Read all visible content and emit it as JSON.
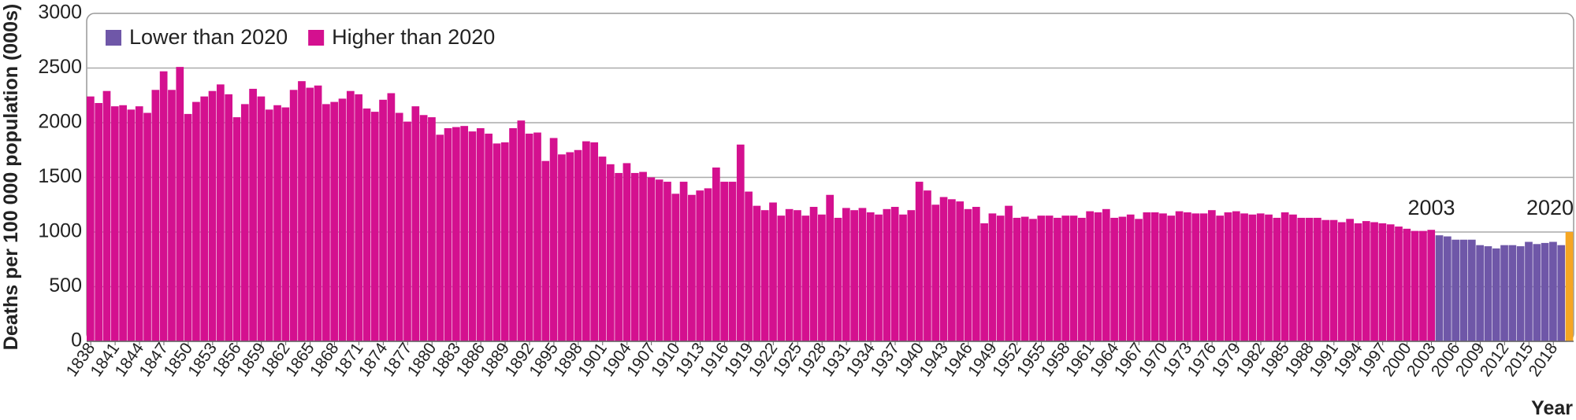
{
  "chart_data": {
    "type": "bar",
    "y_label": "Deaths per 100 000 population (000s)",
    "x_label": "Year",
    "ylim": [
      0,
      3000
    ],
    "yticks": [
      0,
      500,
      1000,
      1500,
      2000,
      2500,
      3000
    ],
    "xlim": [
      1837.5,
      2020.5
    ],
    "xticks": [
      1838,
      1841,
      1844,
      1847,
      1850,
      1853,
      1856,
      1859,
      1862,
      1865,
      1868,
      1871,
      1874,
      1877,
      1880,
      1883,
      1886,
      1889,
      1892,
      1895,
      1898,
      1901,
      1904,
      1907,
      1910,
      1913,
      1916,
      1919,
      1922,
      1925,
      1928,
      1931,
      1934,
      1937,
      1940,
      1943,
      1946,
      1949,
      1952,
      1955,
      1958,
      1961,
      1964,
      1967,
      1970,
      1973,
      1976,
      1979,
      1982,
      1985,
      1988,
      1991,
      1994,
      1997,
      2000,
      2003,
      2006,
      2009,
      2012,
      2015,
      2018
    ],
    "grid": true,
    "legend": "top-left",
    "series": [
      {
        "name": "Lower than 2020",
        "color": "#6f57a8",
        "x": [
          2004,
          2005,
          2006,
          2007,
          2008,
          2009,
          2010,
          2011,
          2012,
          2013,
          2014,
          2015,
          2016,
          2017,
          2018,
          2019
        ],
        "values": [
          970,
          960,
          930,
          930,
          930,
          880,
          870,
          850,
          880,
          880,
          870,
          910,
          890,
          900,
          910,
          880
        ]
      },
      {
        "name": "Higher than 2020",
        "color": "#d4108f",
        "x": [
          1838,
          1839,
          1840,
          1841,
          1842,
          1843,
          1844,
          1845,
          1846,
          1847,
          1848,
          1849,
          1850,
          1851,
          1852,
          1853,
          1854,
          1855,
          1856,
          1857,
          1858,
          1859,
          1860,
          1861,
          1862,
          1863,
          1864,
          1865,
          1866,
          1867,
          1868,
          1869,
          1870,
          1871,
          1872,
          1873,
          1874,
          1875,
          1876,
          1877,
          1878,
          1879,
          1880,
          1881,
          1882,
          1883,
          1884,
          1885,
          1886,
          1887,
          1888,
          1889,
          1890,
          1891,
          1892,
          1893,
          1894,
          1895,
          1896,
          1897,
          1898,
          1899,
          1900,
          1901,
          1902,
          1903,
          1904,
          1905,
          1906,
          1907,
          1908,
          1909,
          1910,
          1911,
          1912,
          1913,
          1914,
          1915,
          1916,
          1917,
          1918,
          1919,
          1920,
          1921,
          1922,
          1923,
          1924,
          1925,
          1926,
          1927,
          1928,
          1929,
          1930,
          1931,
          1932,
          1933,
          1934,
          1935,
          1936,
          1937,
          1938,
          1939,
          1940,
          1941,
          1942,
          1943,
          1944,
          1945,
          1946,
          1947,
          1948,
          1949,
          1950,
          1951,
          1952,
          1953,
          1954,
          1955,
          1956,
          1957,
          1958,
          1959,
          1960,
          1961,
          1962,
          1963,
          1964,
          1965,
          1966,
          1967,
          1968,
          1969,
          1970,
          1971,
          1972,
          1973,
          1974,
          1975,
          1976,
          1977,
          1978,
          1979,
          1980,
          1981,
          1982,
          1983,
          1984,
          1985,
          1986,
          1987,
          1988,
          1989,
          1990,
          1991,
          1992,
          1993,
          1994,
          1995,
          1996,
          1997,
          1998,
          1999,
          2000,
          2001,
          2002,
          2003
        ],
        "values": [
          2240,
          2180,
          2290,
          2150,
          2160,
          2120,
          2150,
          2090,
          2300,
          2470,
          2300,
          2510,
          2080,
          2190,
          2240,
          2290,
          2350,
          2260,
          2050,
          2170,
          2310,
          2240,
          2120,
          2160,
          2140,
          2300,
          2380,
          2320,
          2340,
          2170,
          2190,
          2220,
          2290,
          2260,
          2130,
          2100,
          2210,
          2270,
          2090,
          2010,
          2150,
          2070,
          2050,
          1890,
          1950,
          1960,
          1970,
          1920,
          1950,
          1900,
          1810,
          1820,
          1950,
          2020,
          1900,
          1910,
          1650,
          1860,
          1710,
          1730,
          1750,
          1830,
          1820,
          1690,
          1620,
          1540,
          1630,
          1540,
          1550,
          1500,
          1480,
          1460,
          1350,
          1460,
          1340,
          1380,
          1400,
          1590,
          1460,
          1460,
          1800,
          1370,
          1240,
          1200,
          1270,
          1150,
          1210,
          1200,
          1150,
          1230,
          1160,
          1340,
          1130,
          1220,
          1200,
          1220,
          1180,
          1160,
          1210,
          1230,
          1160,
          1200,
          1460,
          1380,
          1250,
          1320,
          1300,
          1280,
          1210,
          1230,
          1080,
          1170,
          1150,
          1240,
          1130,
          1140,
          1120,
          1150,
          1150,
          1130,
          1150,
          1150,
          1130,
          1190,
          1180,
          1210,
          1130,
          1140,
          1160,
          1120,
          1180,
          1180,
          1170,
          1150,
          1190,
          1180,
          1170,
          1170,
          1200,
          1150,
          1180,
          1190,
          1170,
          1160,
          1170,
          1160,
          1130,
          1180,
          1160,
          1130,
          1130,
          1130,
          1110,
          1110,
          1090,
          1120,
          1080,
          1100,
          1090,
          1080,
          1070,
          1050,
          1030,
          1010,
          1010,
          1020
        ]
      },
      {
        "color": "#f5a623",
        "x": [
          2020
        ],
        "values": [
          1000
        ]
      }
    ],
    "annotations": [
      {
        "text": "2003",
        "x": 2003
      },
      {
        "text": "2020",
        "x": 2020
      }
    ]
  }
}
